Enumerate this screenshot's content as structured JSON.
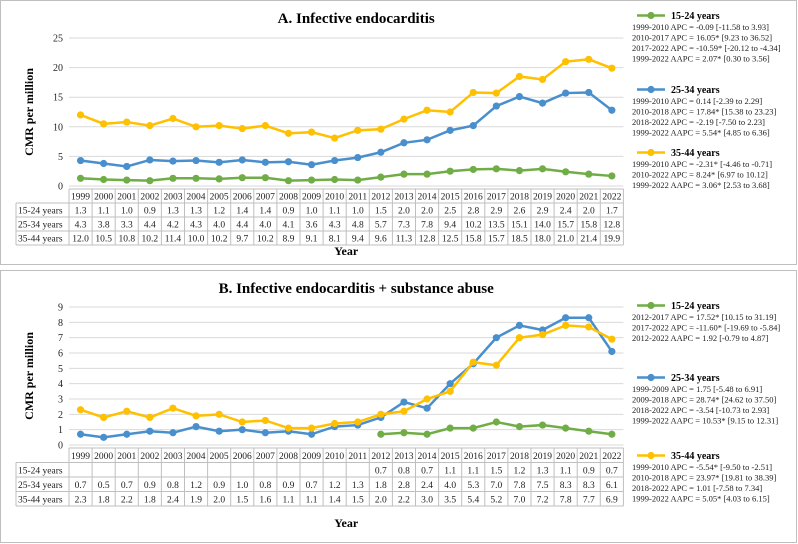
{
  "colors": {
    "g15": "#70ad47",
    "g25": "#4a8fcd",
    "g35": "#ffc000",
    "grid": "#d9d9d9",
    "border": "#bfbfbf"
  },
  "years": [
    "1999",
    "2000",
    "2001",
    "2002",
    "2003",
    "2004",
    "2005",
    "2006",
    "2007",
    "2008",
    "2009",
    "2010",
    "2011",
    "2012",
    "2013",
    "2014",
    "2015",
    "2016",
    "2017",
    "2018",
    "2019",
    "2020",
    "2021",
    "2022"
  ],
  "chart_data": [
    {
      "type": "line",
      "title": "A. Infective endocarditis",
      "xlabel": "Year",
      "ylabel": "CMR per million",
      "ylim": [
        0,
        25
      ],
      "yticks": [
        "0",
        "5",
        "10",
        "15",
        "20",
        "25"
      ],
      "grid": true,
      "legend": "right",
      "series": [
        {
          "key": "g15",
          "name": "15-24 years",
          "values": [
            1.3,
            1.1,
            1.0,
            0.9,
            1.3,
            1.3,
            1.2,
            1.4,
            1.4,
            0.9,
            1.0,
            1.1,
            1.0,
            1.5,
            2.0,
            2.0,
            2.5,
            2.8,
            2.9,
            2.6,
            2.9,
            2.4,
            2.0,
            1.7
          ],
          "cells": [
            "1.3",
            "1.1",
            "1.0",
            "0.9",
            "1.3",
            "1.3",
            "1.2",
            "1.4",
            "1.4",
            "0.9",
            "1.0",
            "1.1",
            "1.0",
            "1.5",
            "2.0",
            "2.0",
            "2.5",
            "2.8",
            "2.9",
            "2.6",
            "2.9",
            "2.4",
            "2.0",
            "1.7"
          ],
          "stats": [
            "1999-2010 APC = -0.09 [-11.58 to 3.93]",
            "2010-2017 APC = 16.05* [9.23 to 36.52]",
            "2017-2022 APC = -10.59* [-20.12 to -4.34]",
            "1999-2022 AAPC = 2.07* [0.30 to 3.56]"
          ]
        },
        {
          "key": "g25",
          "name": "25-34 years",
          "values": [
            4.3,
            3.8,
            3.3,
            4.4,
            4.2,
            4.3,
            4.0,
            4.4,
            4.0,
            4.1,
            3.6,
            4.3,
            4.8,
            5.7,
            7.3,
            7.8,
            9.4,
            10.2,
            13.5,
            15.1,
            14.0,
            15.7,
            15.8,
            12.8
          ],
          "cells": [
            "4.3",
            "3.8",
            "3.3",
            "4.4",
            "4.2",
            "4.3",
            "4.0",
            "4.4",
            "4.0",
            "4.1",
            "3.6",
            "4.3",
            "4.8",
            "5.7",
            "7.3",
            "7.8",
            "9.4",
            "10.2",
            "13.5",
            "15.1",
            "14.0",
            "15.7",
            "15.8",
            "12.8"
          ],
          "stats": [
            "1999-2010 APC = 0.14 [-2.39 to 2.29]",
            "2010-2018 APC = 17.84* [15.38 to 23.23]",
            "2018-2022 APC = -2.19 [-7.50 to 2.23]",
            "1999-2022 AAPC = 5.54* [4.85 to 6.36]"
          ]
        },
        {
          "key": "g35",
          "name": "35-44 years",
          "values": [
            12.0,
            10.5,
            10.8,
            10.2,
            11.4,
            10.0,
            10.2,
            9.7,
            10.2,
            8.9,
            9.1,
            8.1,
            9.4,
            9.6,
            11.3,
            12.8,
            12.5,
            15.8,
            15.7,
            18.5,
            18.0,
            21.0,
            21.4,
            19.9
          ],
          "cells": [
            "12.0",
            "10.5",
            "10.8",
            "10.2",
            "11.4",
            "10.0",
            "10.2",
            "9.7",
            "10.2",
            "8.9",
            "9.1",
            "8.1",
            "9.4",
            "9.6",
            "11.3",
            "12.8",
            "12.5",
            "15.8",
            "15.7",
            "18.5",
            "18.0",
            "21.0",
            "21.4",
            "19.9"
          ],
          "stats": [
            "1999-2010 APC = -2.31* [-4.46 to -0.71]",
            "2010-2022 APC = 8.24* [6.97 to 10.12]",
            "1999-2022 AAPC = 3.06* [2.53 to 3.68]"
          ]
        }
      ]
    },
    {
      "type": "line",
      "title": "B. Infective endocarditis + substance abuse",
      "xlabel": "Year",
      "ylabel": "CMR per million",
      "ylim": [
        0,
        9
      ],
      "yticks": [
        "0",
        "1",
        "2",
        "3",
        "4",
        "5",
        "6",
        "7",
        "8",
        "9"
      ],
      "grid": true,
      "legend": "right",
      "series": [
        {
          "key": "g15",
          "name": "15-24 years",
          "values": [
            null,
            null,
            null,
            null,
            null,
            null,
            null,
            null,
            null,
            null,
            null,
            null,
            null,
            0.7,
            0.8,
            0.7,
            1.1,
            1.1,
            1.5,
            1.2,
            1.3,
            1.1,
            0.9,
            0.7
          ],
          "cells": [
            "",
            "",
            "",
            "",
            "",
            "",
            "",
            "",
            "",
            "",
            "",
            "",
            "",
            "0.7",
            "0.8",
            "0.7",
            "1.1",
            "1.1",
            "1.5",
            "1.2",
            "1.3",
            "1.1",
            "0.9",
            "0.7"
          ],
          "stats": [
            "2012-2017 APC = 17.52* [10.15 to 31.19]",
            "2017-2022 APC = -11.60* [-19.69 to -5.84]",
            "2012-2022 AAPC = 1.92 [-0.79 to 4.87]"
          ]
        },
        {
          "key": "g25",
          "name": "25-34 years",
          "values": [
            0.7,
            0.5,
            0.7,
            0.9,
            0.8,
            1.2,
            0.9,
            1.0,
            0.8,
            0.9,
            0.7,
            1.2,
            1.3,
            1.8,
            2.8,
            2.4,
            4.0,
            5.3,
            7.0,
            7.8,
            7.5,
            8.3,
            8.3,
            6.1
          ],
          "cells": [
            "0.7",
            "0.5",
            "0.7",
            "0.9",
            "0.8",
            "1.2",
            "0.9",
            "1.0",
            "0.8",
            "0.9",
            "0.7",
            "1.2",
            "1.3",
            "1.8",
            "2.8",
            "2.4",
            "4.0",
            "5.3",
            "7.0",
            "7.8",
            "7.5",
            "8.3",
            "8.3",
            "6.1"
          ],
          "stats": [
            "1999-2009 APC = 1.75 [-5.48 to 6.91]",
            "2009-2018 APC = 28.74* [24.62 to 37.50]",
            "2018-2022 APC = -3.54 [-10.73 to 2.93]",
            "1999-2022 AAPC = 10.53* [9.15 to 12.31]"
          ]
        },
        {
          "key": "g35",
          "name": "35-44 years",
          "values": [
            2.3,
            1.8,
            2.2,
            1.8,
            2.4,
            1.9,
            2.0,
            1.5,
            1.6,
            1.1,
            1.1,
            1.4,
            1.5,
            2.0,
            2.2,
            3.0,
            3.5,
            5.4,
            5.2,
            7.0,
            7.2,
            7.8,
            7.7,
            6.9
          ],
          "cells": [
            "2.3",
            "1.8",
            "2.2",
            "1.8",
            "2.4",
            "1.9",
            "2.0",
            "1.5",
            "1.6",
            "1.1",
            "1.1",
            "1.4",
            "1.5",
            "2.0",
            "2.2",
            "3.0",
            "3.5",
            "5.4",
            "5.2",
            "7.0",
            "7.2",
            "7.8",
            "7.7",
            "6.9"
          ],
          "stats": [
            "1999-2010 APC = -5.54* [-9.50 to -2.51]",
            "2010-2018 APC = 23.97* [19.81 to 38.39]",
            "2018-2022 APC = 1.01 [-7.58 to 7.34]",
            "1999-2022 AAPC = 5.05* [4.03 to 6.15]"
          ]
        }
      ]
    }
  ]
}
